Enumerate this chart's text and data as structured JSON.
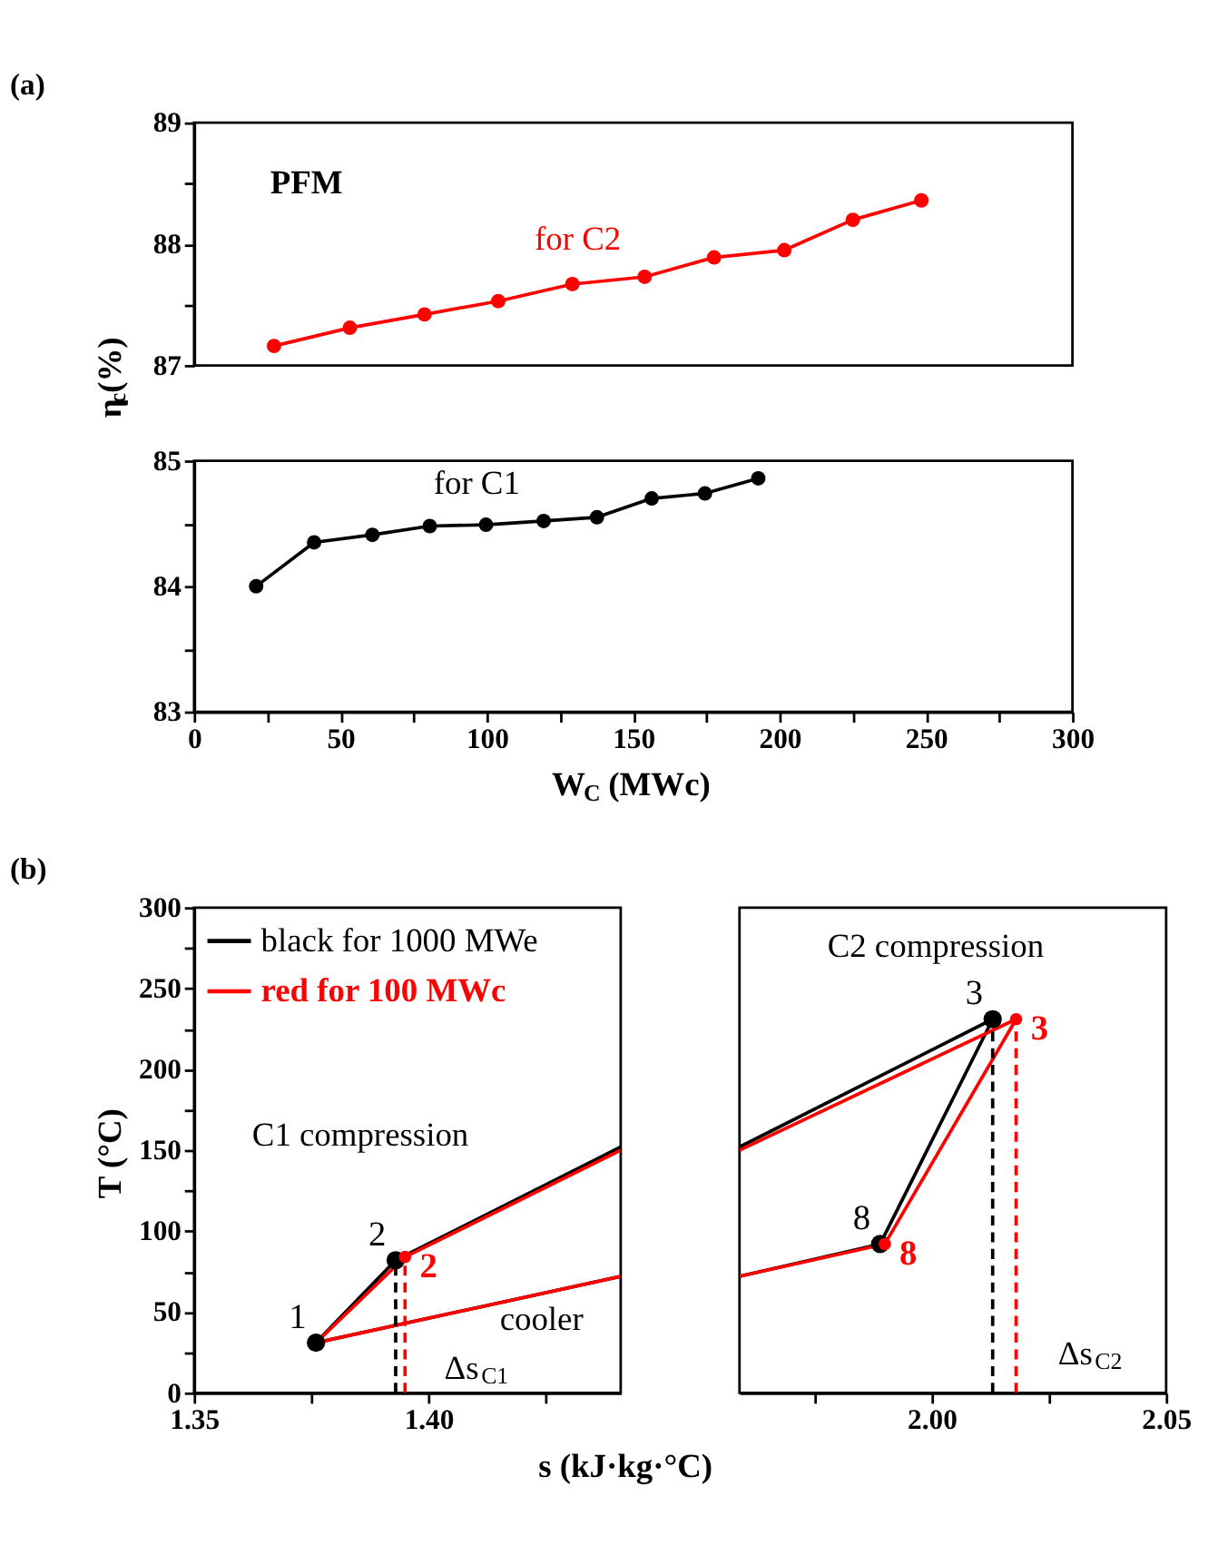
{
  "chart_data": [
    {
      "type": "line",
      "title": "(a)",
      "ylabel": "η$_{c}$(%)",
      "marker": "circle",
      "grid": false,
      "legend": false,
      "tick_labels": "y",
      "xlim": [
        0,
        300
      ],
      "ylim": [
        87,
        89
      ],
      "yticks": [
        87,
        {
          "value": 87.5,
          "label": null
        },
        88,
        {
          "value": 88.5,
          "label": null
        },
        89
      ],
      "annotations": [
        "PFM"
      ],
      "series": [
        {
          "name": "for C2",
          "color": "#ff0000",
          "x": [
            27.3,
            53.2,
            78.7,
            103.9,
            129.2,
            153.9,
            177.6,
            201.6,
            225,
            248.4
          ],
          "values": [
            87.16,
            87.31,
            87.42,
            87.53,
            87.67,
            87.73,
            87.89,
            87.95,
            88.2,
            88.36
          ]
        }
      ]
    },
    {
      "type": "line",
      "xlabel": "W$_{C}$ (MWc)",
      "marker": "circle",
      "grid": false,
      "legend": false,
      "xlim": [
        0,
        300
      ],
      "xticks": [
        0,
        {
          "value": 25,
          "label": null
        },
        50,
        {
          "value": 75,
          "label": null
        },
        100,
        {
          "value": 125,
          "label": null
        },
        150,
        {
          "value": 175,
          "label": null
        },
        200,
        {
          "value": 225,
          "label": null
        },
        250,
        {
          "value": 275,
          "label": null
        },
        300
      ],
      "ylim": [
        83,
        85
      ],
      "yticks": [
        83,
        {
          "value": 83.5,
          "label": null
        },
        84,
        {
          "value": 84.5,
          "label": null
        },
        85
      ],
      "series": [
        {
          "name": "for C1",
          "color": "#000000",
          "x": [
            21.2,
            41,
            60.9,
            80.5,
            99.7,
            119.4,
            137.6,
            156.3,
            174.5,
            192.7
          ],
          "values": [
            84.0,
            84.35,
            84.41,
            84.48,
            84.49,
            84.52,
            84.55,
            84.7,
            84.74,
            84.86
          ]
        }
      ]
    },
    {
      "type": "line",
      "title": "(b)",
      "xlabel": "s (kJ·kg·°C)",
      "ylabel": "T (°C)",
      "marker": "circle",
      "grid": false,
      "legend": "top left",
      "xlim": [
        1.35,
        1.441
      ],
      "xticks": [
        1.35,
        {
          "value": 1.375,
          "label": null
        },
        {
          "value": 1.4,
          "label": "1.40"
        },
        {
          "value": 1.425,
          "label": null
        }
      ],
      "ylim": [
        0,
        300
      ],
      "yticks": [
        0,
        {
          "value": 25,
          "label": null
        },
        50,
        {
          "value": 75,
          "label": null
        },
        100,
        {
          "value": 125,
          "label": null
        },
        150,
        {
          "value": 175,
          "label": null
        },
        200,
        {
          "value": 225,
          "label": null
        },
        250,
        {
          "value": 275,
          "label": null
        },
        300
      ],
      "annotations": [
        "C1 compression",
        "cooler",
        "Δs$_{C1}$"
      ],
      "series": [
        {
          "name": "black for 1000 MWe",
          "color": "#000000",
          "marker": "none",
          "x": [
            1.441,
            1.376,
            1.393,
            1.441
          ],
          "values": [
            72,
            31,
            82,
            152
          ]
        },
        {
          "name": "red for 100 MWc",
          "color": "#ff0000",
          "marker": "none",
          "x": [
            1.441,
            1.376,
            1.395,
            1.441
          ],
          "values": [
            72,
            31,
            84,
            150
          ]
        },
        {
          "color": "#000000",
          "line_style": "dashed",
          "marker": "none",
          "x": [
            1.393,
            1.393
          ],
          "values": [
            0,
            82
          ]
        },
        {
          "color": "#ff0000",
          "line_style": "dashed",
          "marker": "none",
          "x": [
            1.395,
            1.395
          ],
          "values": [
            0,
            84
          ]
        },
        {
          "type": "scatter",
          "name": "2",
          "color": "#000000",
          "x": [
            1.393
          ],
          "values": [
            82
          ]
        },
        {
          "type": "scatter",
          "name": "2",
          "color": "#ff0000",
          "x": [
            1.395
          ],
          "values": [
            84
          ]
        },
        {
          "type": "scatter",
          "name": "1",
          "color": "#000000",
          "x": [
            1.376
          ],
          "values": [
            31
          ]
        }
      ]
    },
    {
      "type": "line",
      "marker": "circle",
      "grid": false,
      "legend": false,
      "tick_labels": "x",
      "xlim": [
        1.959,
        2.05
      ],
      "xticks": [
        {
          "value": 1.975,
          "label": null
        },
        {
          "value": 2,
          "label": "2.00"
        },
        {
          "value": 2.025,
          "label": null
        },
        2.05
      ],
      "ylim": [
        0,
        300
      ],
      "annotations": [
        "C2 compression",
        "Δs$_{C2}$"
      ],
      "series": [
        {
          "color": "#000000",
          "marker": "none",
          "x": [
            1.959,
            2.013,
            1.989,
            1.959
          ],
          "values": [
            152,
            231,
            92,
            72
          ]
        },
        {
          "color": "#ff0000",
          "marker": "none",
          "x": [
            1.959,
            2.018,
            1.99,
            1.959
          ],
          "values": [
            150,
            231,
            92,
            72
          ]
        },
        {
          "color": "#000000",
          "line_style": "dashed",
          "marker": "none",
          "x": [
            2.013,
            2.013
          ],
          "values": [
            0,
            231
          ]
        },
        {
          "color": "#ff0000",
          "line_style": "dashed",
          "marker": "none",
          "x": [
            2.018,
            2.018
          ],
          "values": [
            0,
            231
          ]
        },
        {
          "type": "scatter",
          "name": "3",
          "color": "#000000",
          "x": [
            2.013
          ],
          "values": [
            231
          ]
        },
        {
          "type": "scatter",
          "name": "3",
          "color": "#ff0000",
          "x": [
            2.018
          ],
          "values": [
            231
          ]
        },
        {
          "type": "scatter",
          "name": "8",
          "color": "#000000",
          "x": [
            1.989
          ],
          "values": [
            92
          ]
        },
        {
          "type": "scatter",
          "name": "8",
          "color": "#ff0000",
          "x": [
            1.99
          ],
          "values": [
            92
          ]
        }
      ]
    }
  ]
}
